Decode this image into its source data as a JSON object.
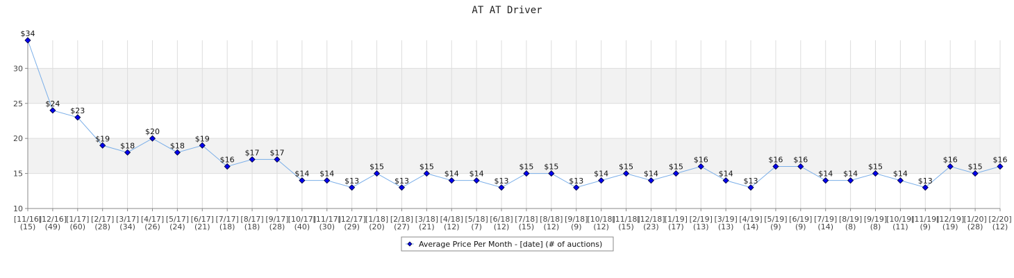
{
  "chart_data": {
    "type": "line",
    "title": "AT AT Driver",
    "xlabel": "",
    "ylabel": "",
    "ylim": [
      10,
      34
    ],
    "yticks": [
      10,
      15,
      20,
      25,
      30
    ],
    "grid": true,
    "legend_position": "bottom-center",
    "categories": [
      {
        "date": "[11/16]",
        "count": "(15)"
      },
      {
        "date": "[12/16]",
        "count": "(49)"
      },
      {
        "date": "[1/17]",
        "count": "(60)"
      },
      {
        "date": "[2/17]",
        "count": "(28)"
      },
      {
        "date": "[3/17]",
        "count": "(34)"
      },
      {
        "date": "[4/17]",
        "count": "(26)"
      },
      {
        "date": "[5/17]",
        "count": "(24)"
      },
      {
        "date": "[6/17]",
        "count": "(21)"
      },
      {
        "date": "[7/17]",
        "count": "(18)"
      },
      {
        "date": "[8/17]",
        "count": "(18)"
      },
      {
        "date": "[9/17]",
        "count": "(28)"
      },
      {
        "date": "[10/17]",
        "count": "(40)"
      },
      {
        "date": "[11/17]",
        "count": "(30)"
      },
      {
        "date": "[12/17]",
        "count": "(29)"
      },
      {
        "date": "[1/18]",
        "count": "(20)"
      },
      {
        "date": "[2/18]",
        "count": "(27)"
      },
      {
        "date": "[3/18]",
        "count": "(21)"
      },
      {
        "date": "[4/18]",
        "count": "(12)"
      },
      {
        "date": "[5/18]",
        "count": "(7)"
      },
      {
        "date": "[6/18]",
        "count": "(12)"
      },
      {
        "date": "[7/18]",
        "count": "(15)"
      },
      {
        "date": "[8/18]",
        "count": "(12)"
      },
      {
        "date": "[9/18]",
        "count": "(9)"
      },
      {
        "date": "[10/18]",
        "count": "(12)"
      },
      {
        "date": "[11/18]",
        "count": "(15)"
      },
      {
        "date": "[12/18]",
        "count": "(23)"
      },
      {
        "date": "[1/19]",
        "count": "(17)"
      },
      {
        "date": "[2/19]",
        "count": "(13)"
      },
      {
        "date": "[3/19]",
        "count": "(13)"
      },
      {
        "date": "[4/19]",
        "count": "(14)"
      },
      {
        "date": "[5/19]",
        "count": "(9)"
      },
      {
        "date": "[6/19]",
        "count": "(9)"
      },
      {
        "date": "[7/19]",
        "count": "(14)"
      },
      {
        "date": "[8/19]",
        "count": "(8)"
      },
      {
        "date": "[9/19]",
        "count": "(8)"
      },
      {
        "date": "[10/19]",
        "count": "(11)"
      },
      {
        "date": "[11/19]",
        "count": "(9)"
      },
      {
        "date": "[12/19]",
        "count": "(19)"
      },
      {
        "date": "[1/20]",
        "count": "(28)"
      },
      {
        "date": "[2/20]",
        "count": "(12)"
      }
    ],
    "series": [
      {
        "name": "Average Price Per Month - [date] (# of auctions)",
        "values": [
          34,
          24,
          23,
          19,
          18,
          20,
          18,
          19,
          16,
          17,
          17,
          14,
          14,
          13,
          15,
          13,
          15,
          14,
          14,
          13,
          15,
          15,
          13,
          14,
          15,
          14,
          15,
          16,
          14,
          13,
          16,
          16,
          14,
          14,
          15,
          14,
          13,
          16,
          15,
          16
        ],
        "labels": [
          "$34",
          "$24",
          "$23",
          "$19",
          "$18",
          "$20",
          "$18",
          "$19",
          "$16",
          "$17",
          "$17",
          "$14",
          "$14",
          "$13",
          "$15",
          "$13",
          "$15",
          "$14",
          "$14",
          "$13",
          "$15",
          "$15",
          "$13",
          "$14",
          "$15",
          "$14",
          "$15",
          "$16",
          "$14",
          "$13",
          "$16",
          "$16",
          "$14",
          "$14",
          "$15",
          "$14",
          "$13",
          "$16",
          "$15",
          "$16"
        ]
      }
    ],
    "colors": {
      "line": "#7aaee8",
      "marker_fill": "#0000ee",
      "marker_stroke": "#000033",
      "band": "#f2f2f2",
      "grid": "#dddddd",
      "axis": "#888888"
    }
  }
}
